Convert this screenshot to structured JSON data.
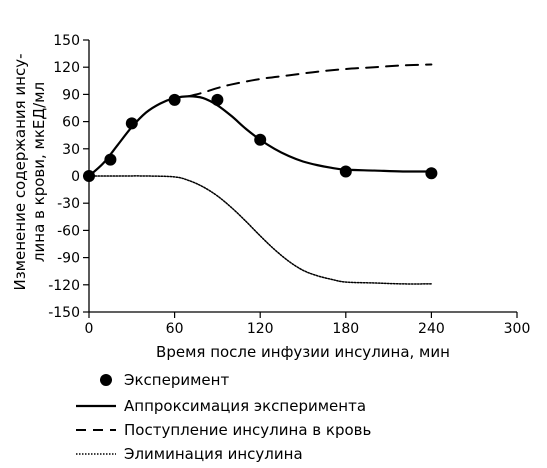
{
  "chart_data": {
    "type": "line",
    "xlabel": "Время после инфузии инсулина, мин",
    "ylabel_lines": [
      "Изменение содержания инсу-",
      "лина в крови, мкЕД/мл"
    ],
    "xlim": [
      0,
      300
    ],
    "ylim": [
      -150,
      150
    ],
    "xticks": [
      0,
      60,
      120,
      180,
      240,
      300
    ],
    "yticks": [
      -150,
      -120,
      -90,
      -60,
      -30,
      0,
      30,
      60,
      90,
      120,
      150
    ],
    "grid": false,
    "legend_position": "bottom",
    "series": [
      {
        "name": "Эксперимент",
        "kind": "scatter",
        "x": [
          0,
          15,
          30,
          60,
          90,
          120,
          180,
          240
        ],
        "y": [
          0,
          18,
          58,
          84,
          84,
          40,
          5,
          3
        ]
      },
      {
        "name": "Аппроксимация эксперимента",
        "kind": "line",
        "style": "solid",
        "x": [
          0,
          10,
          20,
          30,
          40,
          50,
          60,
          70,
          80,
          90,
          100,
          110,
          120,
          130,
          140,
          150,
          160,
          170,
          180,
          200,
          220,
          240
        ],
        "y": [
          0,
          14,
          34,
          54,
          70,
          80,
          86,
          88,
          86,
          78,
          66,
          52,
          40,
          30,
          22,
          16,
          12,
          9,
          7,
          6,
          5,
          5
        ]
      },
      {
        "name": "Поступление инсулина в кровь",
        "kind": "line",
        "style": "dashed",
        "x": [
          70,
          80,
          90,
          100,
          120,
          140,
          160,
          180,
          200,
          220,
          240
        ],
        "y": [
          88,
          92,
          97,
          101,
          107,
          111,
          115,
          118,
          120,
          122,
          123
        ]
      },
      {
        "name": "Элиминация инсулина",
        "kind": "line",
        "style": "dotted",
        "x": [
          0,
          20,
          40,
          60,
          70,
          80,
          90,
          100,
          110,
          120,
          130,
          140,
          150,
          160,
          170,
          180,
          200,
          220,
          240
        ],
        "y": [
          0,
          0,
          0,
          -1,
          -5,
          -12,
          -22,
          -35,
          -50,
          -66,
          -81,
          -94,
          -104,
          -110,
          -114,
          -117,
          -118,
          -119,
          -119
        ]
      }
    ]
  }
}
